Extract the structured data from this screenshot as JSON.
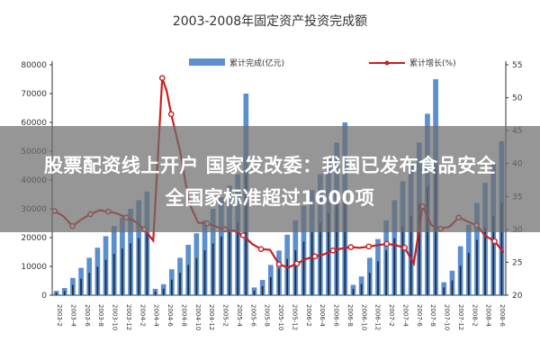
{
  "chart_data": {
    "type": "bar+line",
    "title": "2003-2008年固定资产投资完成额",
    "legend": {
      "bar": "累计完成(亿元)",
      "line": "累计增长(%)",
      "placement": "top"
    },
    "y_left": {
      "ticks": [
        "0",
        "10000",
        "20000",
        "30000",
        "40000",
        "50000",
        "60000",
        "70000",
        "80000"
      ],
      "ylim": [
        0,
        80000
      ]
    },
    "y_right": {
      "ticks": [
        "20",
        "25",
        "30",
        "35",
        "40",
        "45",
        "50",
        "55"
      ],
      "ylim": [
        20,
        55
      ]
    },
    "x_tick_labels": [
      "2003-2",
      "2003-4",
      "2003-6",
      "2003-8",
      "2003-10",
      "2003-12",
      "2004-2",
      "2004-4",
      "2004-6",
      "2004-8",
      "2004-10",
      "2004-12",
      "2005-2",
      "2005-4",
      "2005-6",
      "2005-8",
      "2005-10",
      "2005-12",
      "2006-2",
      "2006-4",
      "2006-6",
      "2006-8",
      "2006-10",
      "2006-12",
      "2007-2",
      "2007-4",
      "2007-6",
      "2007-8",
      "2007-10",
      "2007-12",
      "2008-2",
      "2008-4",
      "2008-6"
    ],
    "bars": [
      {
        "x": 0,
        "value": 1500
      },
      {
        "x": 1,
        "value": 2500
      },
      {
        "x": 2,
        "value": 6000
      },
      {
        "x": 3,
        "value": 9500
      },
      {
        "x": 4,
        "value": 13000
      },
      {
        "x": 5,
        "value": 16500
      },
      {
        "x": 6,
        "value": 20500
      },
      {
        "x": 7,
        "value": 24000
      },
      {
        "x": 8,
        "value": 27000
      },
      {
        "x": 9,
        "value": 30000
      },
      {
        "x": 10,
        "value": 33000
      },
      {
        "x": 11,
        "value": 36000
      },
      {
        "x": 12,
        "value": 2200
      },
      {
        "x": 13,
        "value": 3800
      },
      {
        "x": 14,
        "value": 9000
      },
      {
        "x": 15,
        "value": 13000
      },
      {
        "x": 16,
        "value": 17500
      },
      {
        "x": 17,
        "value": 21500
      },
      {
        "x": 18,
        "value": 26000
      },
      {
        "x": 19,
        "value": 30000
      },
      {
        "x": 20,
        "value": 34000
      },
      {
        "x": 21,
        "value": 38000
      },
      {
        "x": 22,
        "value": 42000
      },
      {
        "x": 23,
        "value": 70000
      },
      {
        "x": 24,
        "value": 2700
      },
      {
        "x": 25,
        "value": 5300
      },
      {
        "x": 26,
        "value": 10500
      },
      {
        "x": 27,
        "value": 15500
      },
      {
        "x": 28,
        "value": 21000
      },
      {
        "x": 29,
        "value": 26000
      },
      {
        "x": 30,
        "value": 31000
      },
      {
        "x": 31,
        "value": 36500
      },
      {
        "x": 32,
        "value": 42000
      },
      {
        "x": 33,
        "value": 47500
      },
      {
        "x": 34,
        "value": 53000
      },
      {
        "x": 35,
        "value": 60000
      },
      {
        "x": 36,
        "value": 3600
      },
      {
        "x": 37,
        "value": 6500
      },
      {
        "x": 38,
        "value": 13000
      },
      {
        "x": 39,
        "value": 19500
      },
      {
        "x": 40,
        "value": 26000
      },
      {
        "x": 41,
        "value": 33000
      },
      {
        "x": 42,
        "value": 39500
      },
      {
        "x": 43,
        "value": 46000
      },
      {
        "x": 44,
        "value": 53000
      },
      {
        "x": 45,
        "value": 63000
      },
      {
        "x": 46,
        "value": 75000
      },
      {
        "x": 47,
        "value": 4500
      },
      {
        "x": 48,
        "value": 8500
      },
      {
        "x": 49,
        "value": 17000
      },
      {
        "x": 50,
        "value": 24500
      },
      {
        "x": 51,
        "value": 32000
      },
      {
        "x": 52,
        "value": 39000
      },
      {
        "x": 53,
        "value": 46000
      },
      {
        "x": 54,
        "value": 53500
      }
    ],
    "line": [
      {
        "x": 0,
        "value": 32.8
      },
      {
        "x": 2,
        "value": 32.0
      },
      {
        "x": 4,
        "value": 30.5
      },
      {
        "x": 6,
        "value": 31.5
      },
      {
        "x": 8,
        "value": 32.3
      },
      {
        "x": 10,
        "value": 32.9
      },
      {
        "x": 12,
        "value": 32.7
      },
      {
        "x": 14,
        "value": 32.4
      },
      {
        "x": 16,
        "value": 31.8
      },
      {
        "x": 18,
        "value": 31.2
      },
      {
        "x": 20,
        "value": 30.0
      },
      {
        "x": 22,
        "value": 28.3
      },
      {
        "x": 24,
        "value": 53.0
      },
      {
        "x": 25,
        "value": 51.0
      },
      {
        "x": 26,
        "value": 47.5
      },
      {
        "x": 28,
        "value": 41.8
      },
      {
        "x": 30,
        "value": 34.0
      },
      {
        "x": 32,
        "value": 31.0
      },
      {
        "x": 34,
        "value": 30.9
      },
      {
        "x": 36,
        "value": 30.4
      },
      {
        "x": 38,
        "value": 30.0
      },
      {
        "x": 40,
        "value": 29.8
      },
      {
        "x": 42,
        "value": 29.1
      },
      {
        "x": 44,
        "value": 27.8
      },
      {
        "x": 46,
        "value": 27.0
      },
      {
        "x": 48,
        "value": 26.9
      },
      {
        "x": 50,
        "value": 24.7
      },
      {
        "x": 52,
        "value": 24.2
      },
      {
        "x": 54,
        "value": 24.8
      },
      {
        "x": 56,
        "value": 25.5
      },
      {
        "x": 58,
        "value": 25.9
      },
      {
        "x": 60,
        "value": 26.2
      },
      {
        "x": 62,
        "value": 26.8
      },
      {
        "x": 64,
        "value": 27.1
      },
      {
        "x": 66,
        "value": 27.3
      },
      {
        "x": 68,
        "value": 27.2
      },
      {
        "x": 70,
        "value": 27.4
      },
      {
        "x": 72,
        "value": 27.6
      },
      {
        "x": 74,
        "value": 27.8
      },
      {
        "x": 76,
        "value": 27.6
      },
      {
        "x": 78,
        "value": 27.2
      },
      {
        "x": 80,
        "value": 24.8
      },
      {
        "x": 82,
        "value": 33.5
      },
      {
        "x": 84,
        "value": 30.6
      },
      {
        "x": 86,
        "value": 30.1
      },
      {
        "x": 88,
        "value": 30.4
      },
      {
        "x": 90,
        "value": 31.8
      },
      {
        "x": 92,
        "value": 31.2
      },
      {
        "x": 94,
        "value": 30.6
      },
      {
        "x": 96,
        "value": 29.0
      },
      {
        "x": 98,
        "value": 28.2
      },
      {
        "x": 100,
        "value": 26.5
      }
    ],
    "colors": {
      "bar_light": "#5b8fd0",
      "bar_dark": "#1f2a3a",
      "line": "#cc1f1f"
    }
  },
  "headline": {
    "line1": "股票配资线上开户 国家发改委：我国已发布食品安全",
    "line2": "全国家标准超过1600项"
  }
}
